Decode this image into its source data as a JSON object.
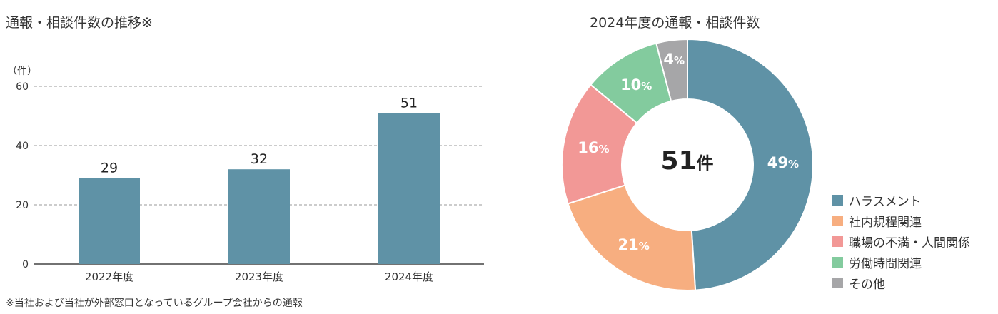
{
  "left_title": "通報・相談件数の推移※",
  "right_title": "2024年度の通報・相談件数",
  "footnote": "※当社および当社が外部窓口となっているグループ会社からの通報",
  "center": {
    "value": "51",
    "unit": "件"
  },
  "colors": {
    "bar": "#5f92a6",
    "grid": "#999999",
    "axis": "#444444"
  },
  "chart_data": [
    {
      "type": "bar",
      "title": "通報・相談件数の推移※",
      "ylabel": "（件）",
      "categories": [
        "2022年度",
        "2023年度",
        "2024年度"
      ],
      "values": [
        29,
        32,
        51
      ],
      "value_labels": [
        "29",
        "32",
        "51"
      ],
      "ylim": [
        0,
        60
      ],
      "yticks": [
        0,
        20,
        40,
        60
      ],
      "ytick_labels": [
        "0",
        "20",
        "40",
        "60"
      ],
      "grid": true
    },
    {
      "type": "pie",
      "title": "2024年度の通報・相談件数",
      "labels": [
        "ハラスメント",
        "社内規程関連",
        "職場の不満・人間関係",
        "労働時間関連",
        "その他"
      ],
      "values": [
        49,
        21,
        16,
        10,
        4
      ],
      "display": [
        "49%",
        "21%",
        "16%",
        "10%",
        "4%"
      ],
      "colors": [
        "#5f92a6",
        "#f7ae80",
        "#f29896",
        "#83cb9e",
        "#a6a6a8"
      ],
      "legend_position": "right"
    }
  ]
}
